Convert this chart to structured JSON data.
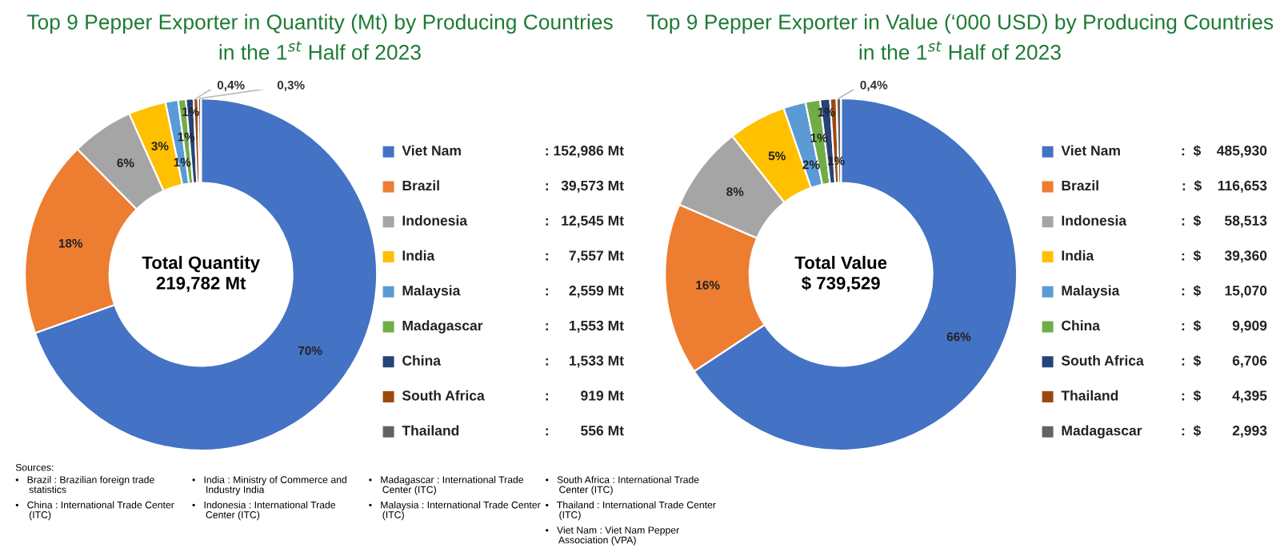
{
  "chart_data": [
    {
      "type": "donut",
      "title": "Top 9 Pepper Exporter in Quantity (Mt) by Producing Countries\nin the 1$^{st}$ Half of 2023",
      "legend": "right",
      "categories": [
        "Viet Nam",
        "Brazil",
        "Indonesia",
        "India",
        "Malaysia",
        "Madagascar",
        "China",
        "South Africa",
        "Thailand"
      ],
      "values": [
        69.6,
        18.01,
        5.71,
        3.44,
        1.16,
        0.71,
        0.7,
        0.42,
        0.25
      ],
      "colors": [
        "#4472c4",
        "#ed7d31",
        "#a5a5a5",
        "#ffc000",
        "#5b9bd5",
        "#70ad47",
        "#264478",
        "#9e480e",
        "#636363"
      ],
      "value_labels": [
        "70%",
        "18%",
        "6%",
        "3%",
        "1%",
        "1%",
        "1%",
        "0,4%",
        "0,3%"
      ],
      "annotations": [
        "Total Quantity\n219,782 Mt",
        ": 152,986 Mt",
        ":   39,573 Mt",
        ":   12,545 Mt",
        ":     7,557 Mt",
        ":     2,559 Mt",
        ":     1,553 Mt",
        ":     1,533 Mt",
        ":        919 Mt",
        ":        556 Mt",
        "Sources:",
        "•   Brazil : Brazilian foreign trade\n     statistics",
        "•   China : International Trade Center\n     (ITC)",
        "•   India : Ministry of Commerce and\n     Industry India",
        "•   Indonesia : International Trade\n     Center (ITC)",
        "•   Madagascar : International Trade\n     Center (ITC)",
        "•   Malaysia : International Trade Center\n     (ITC)",
        "•   South Africa : International Trade\n     Center (ITC)",
        "•   Thailand : International Trade Center\n     (ITC)",
        "•   Viet Nam : Viet Nam Pepper\n     Association (VPA)"
      ]
    },
    {
      "type": "donut",
      "title": "Top 9 Pepper Exporter in Value (‘000 USD) by Producing Countries\nin the 1$^{st}$ Half of 2023",
      "legend": "right",
      "categories": [
        "Viet Nam",
        "Brazil",
        "Indonesia",
        "India",
        "Malaysia",
        "China",
        "South Africa",
        "Thailand",
        "Madagascar"
      ],
      "values": [
        65.71,
        15.77,
        7.91,
        5.32,
        2.04,
        1.34,
        0.91,
        0.59,
        0.4
      ],
      "colors": [
        "#4472c4",
        "#ed7d31",
        "#a5a5a5",
        "#ffc000",
        "#5b9bd5",
        "#70ad47",
        "#264478",
        "#9e480e",
        "#636363"
      ],
      "value_labels": [
        "66%",
        "16%",
        "8%",
        "5%",
        "2%",
        "1%",
        "1%",
        "1%",
        "0,4%"
      ],
      "annotations": [
        "Total Value\n$ 739,529",
        ":  $    485,930",
        ":  $    116,653",
        ":  $      58,513",
        ":  $      39,360",
        ":  $      15,070",
        ":  $        9,909",
        ":  $        6,706",
        ":  $        4,395",
        ":  $        2,993"
      ]
    }
  ]
}
